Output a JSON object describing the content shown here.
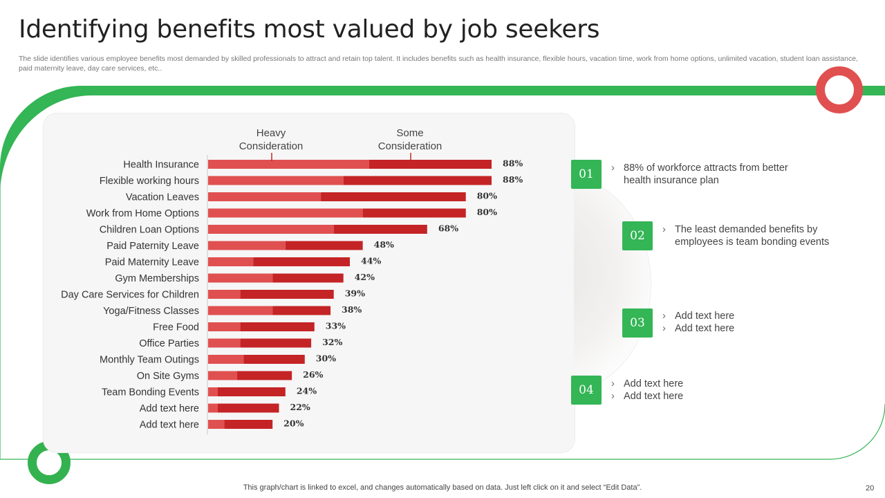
{
  "title": "Identifying benefits most valued by job seekers",
  "subtitle": "The slide identifies various employee benefits most demanded by skilled professionals to attract and retain top talent. It includes benefits such as health insurance, flexible hours, vacation time, work from home options, unlimited vacation, student loan assistance, paid maternity leave, day care services, etc..",
  "colors": {
    "green": "#34b556",
    "heavy": "#e05050",
    "some": "#c42426"
  },
  "chart_data": {
    "type": "bar",
    "orientation": "horizontal",
    "stacked": true,
    "categories": [
      "Health Insurance",
      "Flexible working hours",
      "Vacation Leaves",
      "Work from Home Options",
      "Children Loan Options",
      "Paid Paternity Leave",
      "Paid Maternity Leave",
      "Gym Memberships",
      "Day Care Services for Children",
      "Yoga/Fitness Classes",
      "Free Food",
      "Office Parties",
      "Monthly Team Outings",
      "On Site Gyms",
      "Team Bonding Events",
      "Add text here",
      "Add text here"
    ],
    "series": [
      {
        "name": "Heavy Consideration",
        "values": [
          50,
          42,
          35,
          48,
          39,
          24,
          14,
          20,
          10,
          20,
          10,
          10,
          11,
          9,
          3,
          3,
          5
        ]
      },
      {
        "name": "Some Consideration",
        "values": [
          38,
          46,
          45,
          32,
          29,
          24,
          30,
          22,
          29,
          18,
          23,
          22,
          19,
          17,
          21,
          19,
          15
        ]
      }
    ],
    "totals": [
      88,
      88,
      80,
      80,
      68,
      48,
      44,
      42,
      39,
      38,
      33,
      32,
      30,
      26,
      24,
      22,
      20
    ],
    "total_labels": [
      "88%",
      "88%",
      "80%",
      "80%",
      "68%",
      "48%",
      "44%",
      "42%",
      "39%",
      "38%",
      "33%",
      "32%",
      "30%",
      "26%",
      "24%",
      "22%",
      "20%"
    ],
    "xlim": [
      0,
      88
    ],
    "legend_position": "top"
  },
  "points": [
    {
      "num": "01",
      "lines": [
        "88% of workforce attracts from better",
        "health insurance plan"
      ]
    },
    {
      "num": "02",
      "lines": [
        "The least demanded benefits by",
        "employees is team bonding events"
      ]
    },
    {
      "num": "03",
      "lines": [
        "Add text here",
        "Add text here"
      ]
    },
    {
      "num": "04",
      "lines": [
        "Add text here",
        "Add text here"
      ]
    }
  ],
  "bullet_char": "›",
  "footer": "This graph/chart is linked to excel,  and changes automatically based on data. Just left click on it and select “Edit Data”.",
  "page_number": "20"
}
